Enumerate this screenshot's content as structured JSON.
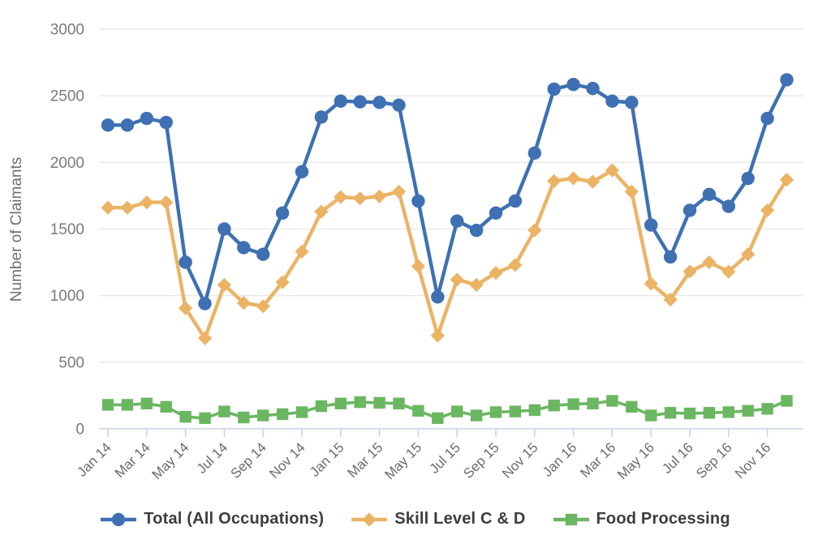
{
  "chart_data": {
    "type": "line",
    "title": "",
    "xlabel": "",
    "ylabel": "Number of Claimants",
    "ylim": [
      0,
      3000
    ],
    "grid": true,
    "legend_position": "bottom",
    "yticks": [
      0,
      500,
      1000,
      1500,
      2000,
      2500,
      3000
    ],
    "x_tick_labels": [
      "Jan 14",
      "Mar 14",
      "May 14",
      "Jul 14",
      "Sep 14",
      "Nov 14",
      "Jan 15",
      "Mar 15",
      "May 15",
      "Jul 15",
      "Sep 15",
      "Nov 15",
      "Jan 16",
      "Mar 16",
      "May 16",
      "Jul 16",
      "Sep 16",
      "Nov 16"
    ],
    "categories": [
      "Jan 14",
      "Feb 14",
      "Mar 14",
      "Apr 14",
      "May 14",
      "Jun 14",
      "Jul 14",
      "Aug 14",
      "Sep 14",
      "Oct 14",
      "Nov 14",
      "Dec 14",
      "Jan 15",
      "Feb 15",
      "Mar 15",
      "Apr 15",
      "May 15",
      "Jun 15",
      "Jul 15",
      "Aug 15",
      "Sep 15",
      "Oct 15",
      "Nov 15",
      "Dec 15",
      "Jan 16",
      "Feb 16",
      "Mar 16",
      "Apr 16",
      "May 16",
      "Jun 16",
      "Jul 16",
      "Aug 16",
      "Sep 16",
      "Oct 16",
      "Nov 16",
      "Dec 16"
    ],
    "series": [
      {
        "name": "Total (All Occupations)",
        "marker": "circle",
        "color": "#3E70B3",
        "values": [
          2280,
          2280,
          2330,
          2300,
          1250,
          940,
          1500,
          1360,
          1310,
          1620,
          1930,
          2340,
          2460,
          2455,
          2450,
          2430,
          1710,
          990,
          1560,
          1490,
          1620,
          1710,
          2070,
          2550,
          2585,
          2555,
          2460,
          2450,
          1530,
          1290,
          1640,
          1760,
          1670,
          1880,
          2330,
          2620
        ]
      },
      {
        "name": "Skill Level C & D",
        "marker": "diamond",
        "color": "#EBB364",
        "values": [
          1660,
          1660,
          1700,
          1700,
          905,
          680,
          1080,
          945,
          920,
          1100,
          1330,
          1630,
          1740,
          1730,
          1745,
          1780,
          1220,
          700,
          1120,
          1080,
          1170,
          1230,
          1490,
          1860,
          1880,
          1855,
          1940,
          1780,
          1090,
          970,
          1180,
          1250,
          1180,
          1310,
          1640,
          1870
        ]
      },
      {
        "name": "Food Processing",
        "marker": "square",
        "color": "#6BB761",
        "values": [
          180,
          180,
          190,
          165,
          90,
          80,
          130,
          85,
          100,
          110,
          125,
          170,
          190,
          200,
          195,
          190,
          135,
          80,
          130,
          100,
          125,
          130,
          140,
          175,
          185,
          190,
          210,
          165,
          100,
          120,
          115,
          120,
          125,
          135,
          150,
          210
        ]
      }
    ],
    "colors": {
      "gridline": "#e8e8e8",
      "axis_line": "#c9d4e8",
      "y_tick_label": "#7a7a7a",
      "x_tick_label": "#6b6b6b",
      "axis_title": "#6e6e6e",
      "legend_text": "#3d3d3d"
    }
  }
}
